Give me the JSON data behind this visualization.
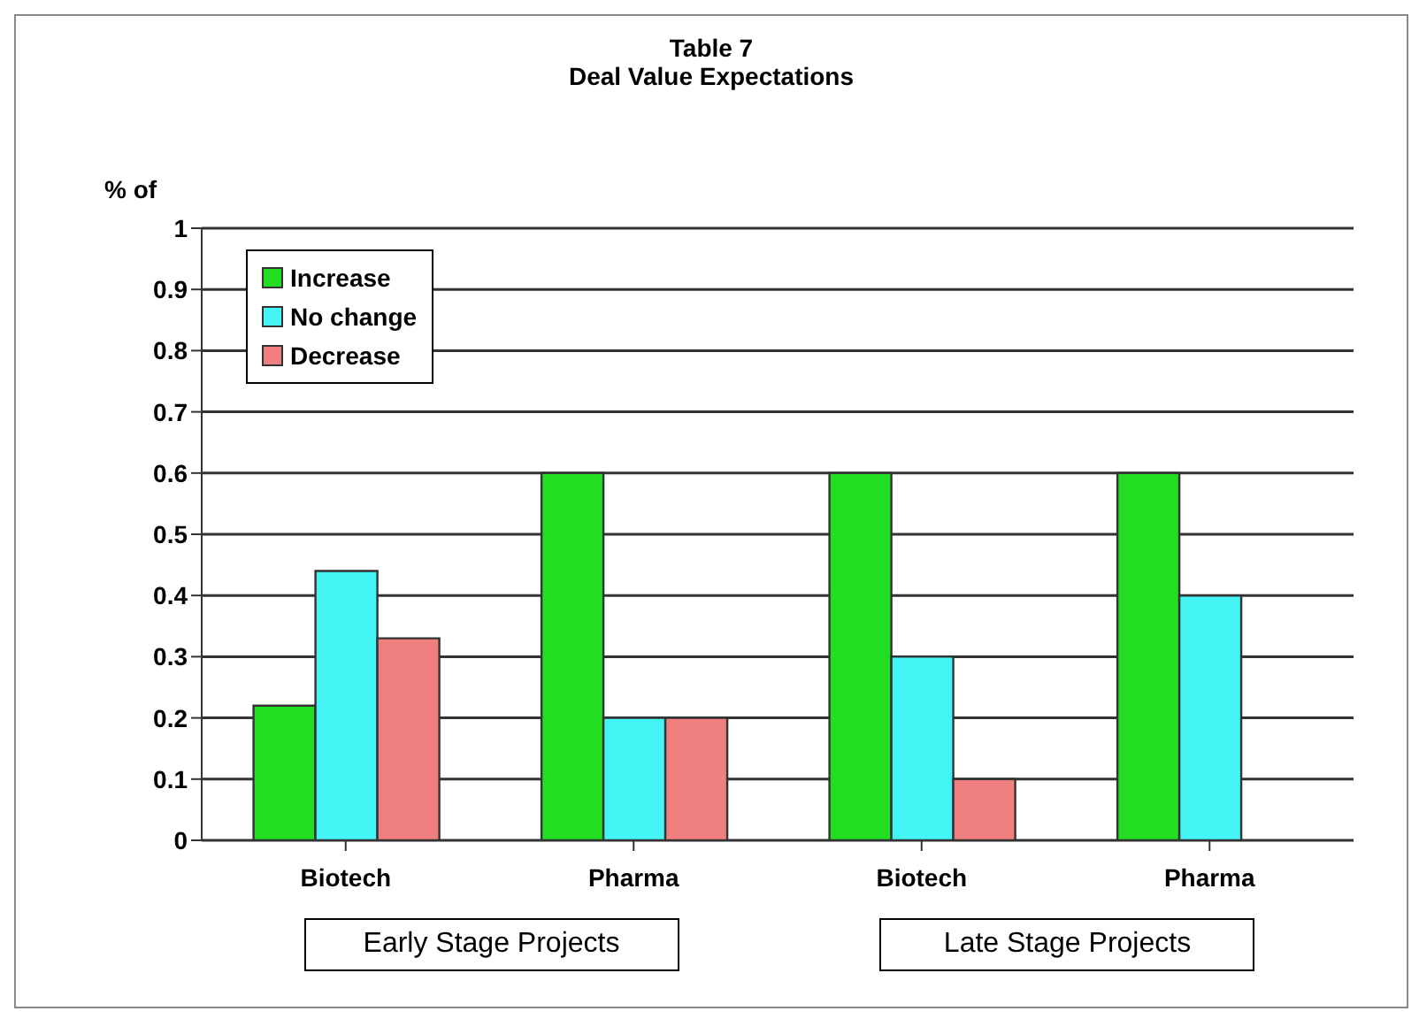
{
  "chart_data": {
    "type": "bar",
    "title": "Table 7",
    "subtitle": "Deal Value Expectations",
    "ylabel": "% of",
    "categories": [
      "Biotech",
      "Pharma",
      "Biotech",
      "Pharma"
    ],
    "series": [
      {
        "name": "Increase",
        "color": "#22dd22",
        "values": [
          0.22,
          0.6,
          0.6,
          0.6
        ]
      },
      {
        "name": "No change",
        "color": "#44f4f4",
        "values": [
          0.44,
          0.2,
          0.3,
          0.4
        ]
      },
      {
        "name": "Decrease",
        "color": "#f08080",
        "values": [
          0.33,
          0.2,
          0.1,
          0
        ]
      }
    ],
    "ylim": [
      0,
      1
    ],
    "yticks": [
      0,
      0.1,
      0.2,
      0.3,
      0.4,
      0.5,
      0.6,
      0.7,
      0.8,
      0.9,
      1
    ],
    "grid": "y",
    "legend": "top left",
    "annotations": [
      "Early Stage Projects",
      "Late Stage Projects"
    ]
  }
}
